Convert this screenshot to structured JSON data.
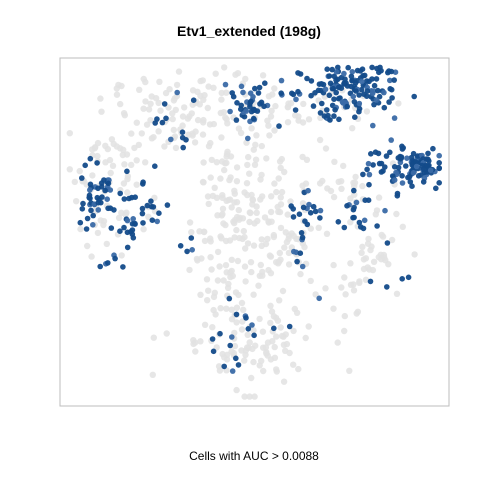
{
  "chart_data": {
    "type": "scatter",
    "title": "Etv1_extended (198g)",
    "xlabel": "Cells with AUC > 0.0088",
    "ylabel": "",
    "axes_shown": false,
    "grid": false,
    "legend": "none",
    "xlim": [
      0,
      100
    ],
    "ylim": [
      0,
      100
    ],
    "colors": {
      "background_cells": "#e2e2e2",
      "selected_cells": "#134b8a",
      "selected_cells_light": "#3a6aa6",
      "frame": "#bdbdbd"
    },
    "clusters": [
      {
        "name": "background",
        "state": "below_threshold",
        "regions": [
          {
            "cx": 32,
            "cy": 85,
            "sx": 10,
            "sy": 6,
            "n": 90
          },
          {
            "cx": 15,
            "cy": 70,
            "sx": 6,
            "sy": 10,
            "n": 60
          },
          {
            "cx": 45,
            "cy": 55,
            "sx": 6,
            "sy": 14,
            "n": 150
          },
          {
            "cx": 58,
            "cy": 48,
            "sx": 5,
            "sy": 7,
            "n": 50
          },
          {
            "cx": 48,
            "cy": 18,
            "sx": 10,
            "sy": 8,
            "n": 110
          },
          {
            "cx": 80,
            "cy": 42,
            "sx": 5,
            "sy": 7,
            "n": 45
          },
          {
            "cx": 62,
            "cy": 88,
            "sx": 10,
            "sy": 4,
            "n": 50
          },
          {
            "cx": 10,
            "cy": 56,
            "sx": 4,
            "sy": 8,
            "n": 20
          },
          {
            "cx": 75,
            "cy": 64,
            "sx": 8,
            "sy": 5,
            "n": 30
          }
        ]
      },
      {
        "name": "selected",
        "state": "above_threshold",
        "regions": [
          {
            "cx": 74,
            "cy": 92,
            "sx": 7,
            "sy": 4,
            "n": 150
          },
          {
            "cx": 94,
            "cy": 70,
            "sx": 3,
            "sy": 2,
            "n": 70
          },
          {
            "cx": 48,
            "cy": 88,
            "sx": 3,
            "sy": 3,
            "n": 40
          },
          {
            "cx": 9,
            "cy": 62,
            "sx": 3,
            "sy": 6,
            "n": 45
          },
          {
            "cx": 18,
            "cy": 57,
            "sx": 4,
            "sy": 5,
            "n": 35
          },
          {
            "cx": 85,
            "cy": 68,
            "sx": 6,
            "sy": 5,
            "n": 45
          },
          {
            "cx": 63,
            "cy": 53,
            "sx": 2,
            "sy": 5,
            "n": 18
          },
          {
            "cx": 78,
            "cy": 54,
            "sx": 4,
            "sy": 3,
            "n": 14
          },
          {
            "cx": 32,
            "cy": 82,
            "sx": 6,
            "sy": 6,
            "n": 12
          },
          {
            "cx": 42,
            "cy": 18,
            "sx": 3,
            "sy": 5,
            "n": 10
          },
          {
            "cx": 12,
            "cy": 42,
            "sx": 2,
            "sy": 2,
            "n": 6
          },
          {
            "cx": 67,
            "cy": 45,
            "sx": 4,
            "sy": 6,
            "n": 8
          },
          {
            "cx": 83,
            "cy": 35,
            "sx": 3,
            "sy": 3,
            "n": 4
          },
          {
            "cx": 32,
            "cy": 46,
            "sx": 2,
            "sy": 2,
            "n": 4
          },
          {
            "cx": 50,
            "cy": 22,
            "sx": 4,
            "sy": 3,
            "n": 8
          }
        ]
      }
    ]
  }
}
